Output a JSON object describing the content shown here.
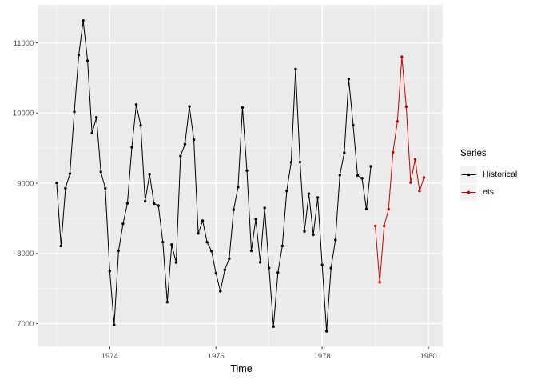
{
  "chart_data": {
    "type": "line",
    "title": "",
    "xlabel": "Time",
    "ylabel": "",
    "x_ticks": [
      1974,
      1976,
      1978,
      1980
    ],
    "x_minor_ticks": [
      1973,
      1975,
      1977,
      1979
    ],
    "y_ticks": [
      7000,
      8000,
      9000,
      10000,
      11000
    ],
    "y_minor_ticks": [
      7500,
      8500,
      9500,
      10500,
      11500
    ],
    "xlim": [
      1972.654,
      1980.263
    ],
    "ylim": [
      6670.75,
      11538.25
    ],
    "grid": true,
    "legend": {
      "title": "Series",
      "position": "right",
      "entries": [
        {
          "label": "Historical",
          "color": "#000000"
        },
        {
          "label": "ets",
          "color": "#CC0000"
        }
      ]
    },
    "series": [
      {
        "name": "Historical",
        "color": "#000000",
        "start": 1973.0,
        "step_years": 0.0833333,
        "values": [
          9007,
          8106,
          8928,
          9137,
          10017,
          10826,
          11317,
          10744,
          9713,
          9938,
          9161,
          8927,
          7750,
          6981,
          8038,
          8422,
          8714,
          9512,
          10120,
          9823,
          8743,
          9129,
          8710,
          8680,
          8162,
          7306,
          8124,
          7870,
          9387,
          9556,
          10093,
          9620,
          8285,
          8466,
          8160,
          8034,
          7717,
          7461,
          7767,
          7925,
          8623,
          8945,
          10078,
          9179,
          8037,
          8488,
          7874,
          8647,
          7792,
          6957,
          7726,
          8106,
          8890,
          9299,
          10625,
          9302,
          8314,
          8850,
          8265,
          8796,
          7836,
          6892,
          7791,
          8192,
          9115,
          9434,
          10484,
          9827,
          9110,
          9070,
          8633,
          9240
        ]
      },
      {
        "name": "ets",
        "color": "#CC0000",
        "start": 1979.0,
        "step_years": 0.0833333,
        "values": [
          8390,
          7590,
          8390,
          8630,
          9440,
          9880,
          10800,
          10090,
          9010,
          9340,
          8890,
          9080
        ]
      }
    ],
    "theme": {
      "panel_bg": "#EBEBEB",
      "grid_major": "#FFFFFF",
      "grid_minor": "#F6F6F6",
      "tick_label_color": "#4D4D4D",
      "tick_mark_color": "#333333",
      "legend_key_bg": "#F2F2F2",
      "outer_bg": "#FFFFFF"
    }
  }
}
